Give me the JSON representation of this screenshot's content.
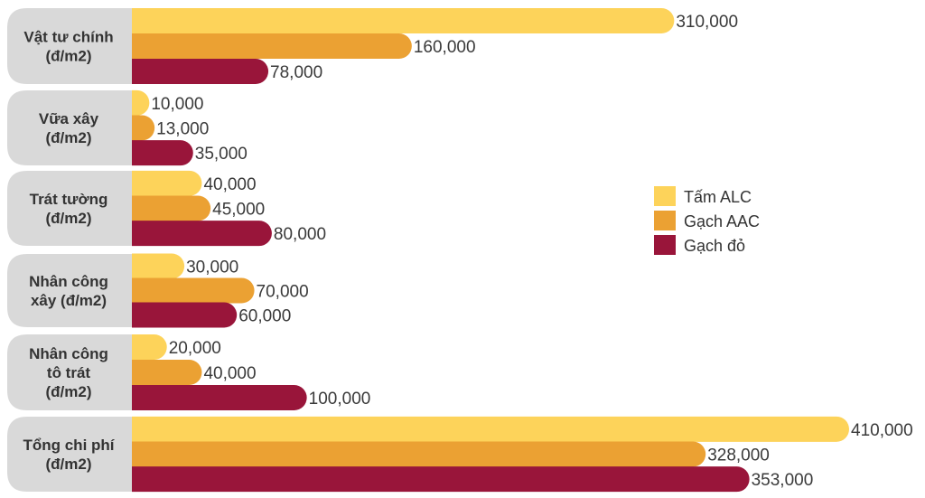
{
  "chart_data": {
    "type": "bar",
    "orientation": "horizontal",
    "title": "",
    "xlabel": "",
    "ylabel": "",
    "xlim": [
      0,
      410000
    ],
    "grid": false,
    "legend_position": "right",
    "categories": [
      [
        "Vật tư chính",
        "(đ/m2)"
      ],
      [
        "Vữa xây",
        "(đ/m2)"
      ],
      [
        "Trát tường",
        "(đ/m2)"
      ],
      [
        "Nhân công",
        "xây (đ/m2)"
      ],
      [
        "Nhân công",
        "tô trát",
        "(đ/m2)"
      ],
      [
        "Tổng chi phí",
        "(đ/m2)"
      ]
    ],
    "series": [
      {
        "name": "Tấm ALC",
        "color": "#FDD35A",
        "values": [
          310000,
          10000,
          40000,
          30000,
          20000,
          410000
        ],
        "labels": [
          "310,000",
          "10,000",
          "40,000",
          "30,000",
          "20,000",
          "410,000"
        ]
      },
      {
        "name": "Gạch AAC",
        "color": "#EBA133",
        "values": [
          160000,
          13000,
          45000,
          70000,
          40000,
          328000
        ],
        "labels": [
          "160,000",
          "13,000",
          "45,000",
          "70,000",
          "40,000",
          "328,000"
        ]
      },
      {
        "name": "Gạch đỏ",
        "color": "#99153A",
        "values": [
          78000,
          35000,
          80000,
          60000,
          100000,
          353000
        ],
        "labels": [
          "78,000",
          "35,000",
          "80,000",
          "60,000",
          "100,000",
          "353,000"
        ]
      }
    ],
    "category_box_color": "#D9D9D9"
  }
}
